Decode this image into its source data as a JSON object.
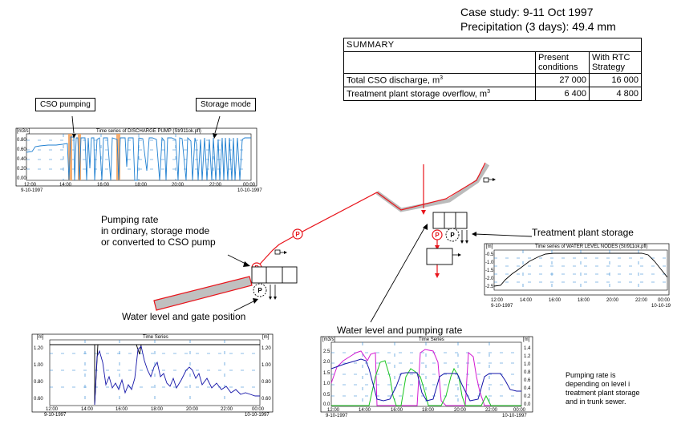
{
  "header": {
    "case_study": "Case study: 9-11 Oct 1997",
    "precipitation": "Precipitation (3 days): 49.4 mm"
  },
  "summary": {
    "title": "SUMMARY",
    "col1": [
      "Present",
      "conditions"
    ],
    "col2": [
      "With RTC",
      "Strategy"
    ],
    "rows": [
      {
        "label": "Total CSO discharge, m",
        "sup": "3",
        "present": "27 000",
        "rtc": "16 000"
      },
      {
        "label": "Treatment plant storage overflow, m",
        "sup": "3",
        "present": "6 400",
        "rtc": "4 800"
      }
    ]
  },
  "callouts": {
    "cso_pumping": "CSO pumping",
    "storage_mode": "Storage mode",
    "pumping_rate": [
      "Pumping rate",
      "in ordinary, storage mode",
      "or converted to CSO pump"
    ],
    "water_level_gate": "Water level and gate position",
    "treatment_storage": "Treatment plant storage",
    "water_level_pumping": "Water level and pumping rate",
    "note": [
      "Pumping rate is",
      "depending on level i",
      "treatment plant storage",
      "and in trunk sewer."
    ]
  },
  "charts": {
    "discharge": {
      "title": "Time series of DISCHARGE PUMP (Str911ok.pfl)",
      "unit": "[m3/s]",
      "yticks": [
        "0.80",
        "0.60",
        "0.40",
        "0.20",
        "0.00"
      ],
      "xticks": [
        "12:00",
        "14:00",
        "16:00",
        "18:00",
        "20:00",
        "22:00",
        "00:00"
      ],
      "date_start": "9-10-1997",
      "date_end": "10-10-1997"
    },
    "water_level_nodes": {
      "title": "Time series of WATER LEVEL NODES (Str911ok.pfl)",
      "unit": "[m]",
      "yticks": [
        "-0.5",
        "-1.0",
        "-1.5",
        "-2.0",
        "-2.5"
      ],
      "xticks": [
        "12:00",
        "14:00",
        "16:00",
        "18:00",
        "20:00",
        "22:00",
        "00:00"
      ],
      "date_start": "9-10-1997",
      "date_end": "10-10-19"
    },
    "gate": {
      "title": "Time Series",
      "unit_left": "[m]",
      "unit_right": "[m]",
      "yticks_left": [
        "1.20",
        "1.00",
        "0.80",
        "0.60"
      ],
      "yticks_right": [
        "1.20",
        "1.00",
        "0.80",
        "0.60"
      ],
      "xticks": [
        "12:00",
        "14:00",
        "16:00",
        "18:00",
        "20:00",
        "22:00",
        "00:00"
      ],
      "date_start": "9-10-1997",
      "date_end": "10-10-1997"
    },
    "pumping": {
      "title": "Time Series",
      "unit_left": "[m3/s]",
      "unit_right": "[m]",
      "yticks_left": [
        "2.5",
        "2.0",
        "1.5",
        "1.0",
        "0.5",
        "0.0"
      ],
      "yticks_right": [
        "1.4",
        "1.2",
        "1.0",
        "0.8",
        "0.6",
        "0.4",
        "0.2",
        "0.0"
      ],
      "xticks": [
        "12:00",
        "14:00",
        "16:00",
        "18:00",
        "20:00",
        "22:00",
        "00:00"
      ],
      "date_start": "9-10-1997",
      "date_end": "10-10-1997"
    }
  },
  "diagram": {
    "pump_symbol": "P",
    "colors": {
      "pipe": "#e8141b",
      "shade": "#bbbbbb",
      "series_blue": "#1f7fd0",
      "series_navy": "#1515a8",
      "series_green": "#19c51f",
      "series_magenta": "#d21ad2",
      "cso_band": "#f4a460"
    }
  }
}
